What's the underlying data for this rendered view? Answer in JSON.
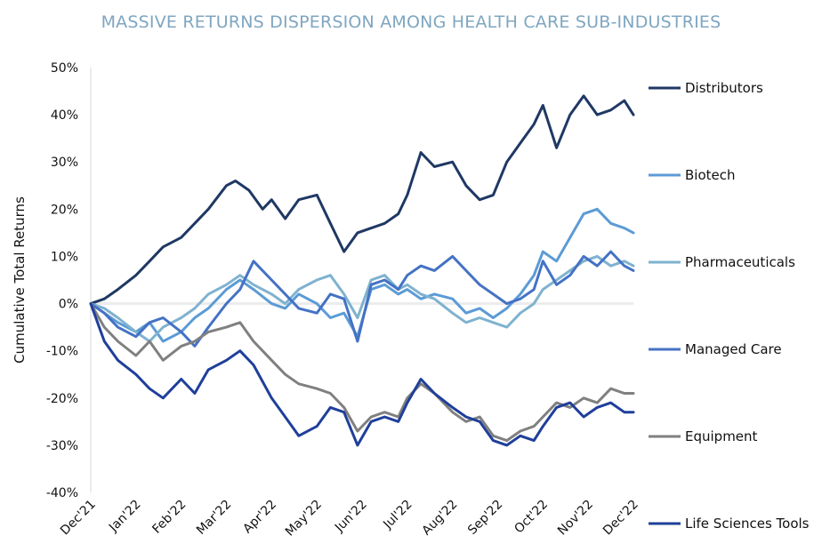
{
  "chart_data": {
    "type": "line",
    "title": "MASSIVE RETURNS DISPERSION AMONG HEALTH CARE SUB-INDUSTRIES",
    "ylabel": "Cumulative Total Returns",
    "xlabel": "",
    "y_tick_labels": [
      "50%",
      "40%",
      "30%",
      "20%",
      "10%",
      "0%",
      "-10%",
      "-20%",
      "-30%",
      "-40%"
    ],
    "y_ticks": [
      50,
      40,
      30,
      20,
      10,
      0,
      -10,
      -20,
      -30,
      -40
    ],
    "ylim": [
      -40,
      50
    ],
    "categories": [
      "Dec'21",
      "Jan'22",
      "Feb'22",
      "Mar'22",
      "Apr'22",
      "May'22",
      "Jun'22",
      "Jul'22",
      "Aug'22",
      "Sep'22",
      "Oct'22",
      "Nov'22",
      "Dec'22"
    ],
    "grid": false,
    "zero_line": true,
    "legend_position": "right",
    "series": [
      {
        "name": "Distributors",
        "color": "#1f3864",
        "x": [
          0,
          0.3,
          0.6,
          1.0,
          1.3,
          1.6,
          2.0,
          2.3,
          2.6,
          3.0,
          3.2,
          3.5,
          3.8,
          4.0,
          4.3,
          4.6,
          5.0,
          5.3,
          5.6,
          5.9,
          6.2,
          6.5,
          6.8,
          7.0,
          7.3,
          7.6,
          8.0,
          8.3,
          8.6,
          8.9,
          9.2,
          9.5,
          9.8,
          10.0,
          10.3,
          10.6,
          10.9,
          11.2,
          11.5,
          11.8,
          12.0
        ],
        "values": [
          0,
          1,
          3,
          6,
          9,
          12,
          14,
          17,
          20,
          25,
          26,
          24,
          20,
          22,
          18,
          22,
          23,
          17,
          11,
          15,
          16,
          17,
          19,
          23,
          32,
          29,
          30,
          25,
          22,
          23,
          30,
          34,
          38,
          42,
          33,
          40,
          44,
          40,
          41,
          43,
          40
        ]
      },
      {
        "name": "Biotech",
        "color": "#5b9bd5",
        "x": [
          0,
          0.3,
          0.6,
          1.0,
          1.3,
          1.6,
          2.0,
          2.3,
          2.6,
          3.0,
          3.3,
          3.6,
          4.0,
          4.3,
          4.6,
          5.0,
          5.3,
          5.6,
          5.9,
          6.2,
          6.5,
          6.8,
          7.0,
          7.3,
          7.6,
          8.0,
          8.3,
          8.6,
          8.9,
          9.2,
          9.5,
          9.8,
          10.0,
          10.3,
          10.6,
          10.9,
          11.2,
          11.5,
          11.8,
          12.0
        ],
        "values": [
          0,
          -2,
          -4,
          -6,
          -4,
          -8,
          -6,
          -3,
          -1,
          3,
          5,
          3,
          0,
          -1,
          2,
          0,
          -3,
          -2,
          -7,
          3,
          4,
          2,
          3,
          1,
          2,
          1,
          -2,
          -1,
          -3,
          -1,
          2,
          6,
          11,
          9,
          14,
          19,
          20,
          17,
          16,
          15
        ]
      },
      {
        "name": "Pharmaceuticals",
        "color": "#7fb2cf",
        "x": [
          0,
          0.3,
          0.6,
          1.0,
          1.3,
          1.6,
          2.0,
          2.3,
          2.6,
          3.0,
          3.3,
          3.6,
          4.0,
          4.3,
          4.6,
          5.0,
          5.3,
          5.6,
          5.9,
          6.2,
          6.5,
          6.8,
          7.0,
          7.3,
          7.6,
          8.0,
          8.3,
          8.6,
          8.9,
          9.2,
          9.5,
          9.8,
          10.0,
          10.3,
          10.6,
          10.9,
          11.2,
          11.5,
          11.8,
          12.0
        ],
        "values": [
          0,
          -1,
          -3,
          -6,
          -8,
          -5,
          -3,
          -1,
          2,
          4,
          6,
          4,
          2,
          0,
          3,
          5,
          6,
          2,
          -3,
          5,
          6,
          3,
          4,
          2,
          1,
          -2,
          -4,
          -3,
          -4,
          -5,
          -2,
          0,
          3,
          5,
          7,
          9,
          10,
          8,
          9,
          8
        ]
      },
      {
        "name": "Managed Care",
        "color": "#4472c4",
        "x": [
          0,
          0.3,
          0.6,
          1.0,
          1.3,
          1.6,
          2.0,
          2.3,
          2.6,
          3.0,
          3.3,
          3.6,
          4.0,
          4.3,
          4.6,
          5.0,
          5.3,
          5.6,
          5.9,
          6.2,
          6.5,
          6.8,
          7.0,
          7.3,
          7.6,
          8.0,
          8.3,
          8.6,
          8.9,
          9.2,
          9.5,
          9.8,
          10.0,
          10.3,
          10.6,
          10.9,
          11.2,
          11.5,
          11.8,
          12.0
        ],
        "values": [
          0,
          -2,
          -5,
          -7,
          -4,
          -3,
          -6,
          -9,
          -5,
          0,
          3,
          9,
          5,
          2,
          -1,
          -2,
          2,
          1,
          -8,
          4,
          5,
          3,
          6,
          8,
          7,
          10,
          7,
          4,
          2,
          0,
          1,
          3,
          9,
          4,
          6,
          10,
          8,
          11,
          8,
          7
        ]
      },
      {
        "name": "Equipment",
        "color": "#808080",
        "x": [
          0,
          0.3,
          0.6,
          1.0,
          1.3,
          1.6,
          2.0,
          2.3,
          2.6,
          3.0,
          3.3,
          3.6,
          4.0,
          4.3,
          4.6,
          5.0,
          5.3,
          5.6,
          5.9,
          6.2,
          6.5,
          6.8,
          7.0,
          7.3,
          7.6,
          8.0,
          8.3,
          8.6,
          8.9,
          9.2,
          9.5,
          9.8,
          10.0,
          10.3,
          10.6,
          10.9,
          11.2,
          11.5,
          11.8,
          12.0
        ],
        "values": [
          0,
          -5,
          -8,
          -11,
          -8,
          -12,
          -9,
          -8,
          -6,
          -5,
          -4,
          -8,
          -12,
          -15,
          -17,
          -18,
          -19,
          -22,
          -27,
          -24,
          -23,
          -24,
          -20,
          -17,
          -19,
          -23,
          -25,
          -24,
          -28,
          -29,
          -27,
          -26,
          -24,
          -21,
          -22,
          -20,
          -21,
          -18,
          -19,
          -19
        ]
      },
      {
        "name": "Life Sciences Tools",
        "color": "#1f3f9a",
        "x": [
          0,
          0.3,
          0.6,
          1.0,
          1.3,
          1.6,
          2.0,
          2.3,
          2.6,
          3.0,
          3.3,
          3.6,
          4.0,
          4.3,
          4.6,
          5.0,
          5.3,
          5.6,
          5.9,
          6.2,
          6.5,
          6.8,
          7.0,
          7.3,
          7.6,
          8.0,
          8.3,
          8.6,
          8.9,
          9.2,
          9.5,
          9.8,
          10.0,
          10.3,
          10.6,
          10.9,
          11.2,
          11.5,
          11.8,
          12.0
        ],
        "values": [
          0,
          -8,
          -12,
          -15,
          -18,
          -20,
          -16,
          -19,
          -14,
          -12,
          -10,
          -13,
          -20,
          -24,
          -28,
          -26,
          -22,
          -23,
          -30,
          -25,
          -24,
          -25,
          -21,
          -16,
          -19,
          -22,
          -24,
          -25,
          -29,
          -30,
          -28,
          -29,
          -26,
          -22,
          -21,
          -24,
          -22,
          -21,
          -23,
          -23
        ]
      }
    ]
  }
}
